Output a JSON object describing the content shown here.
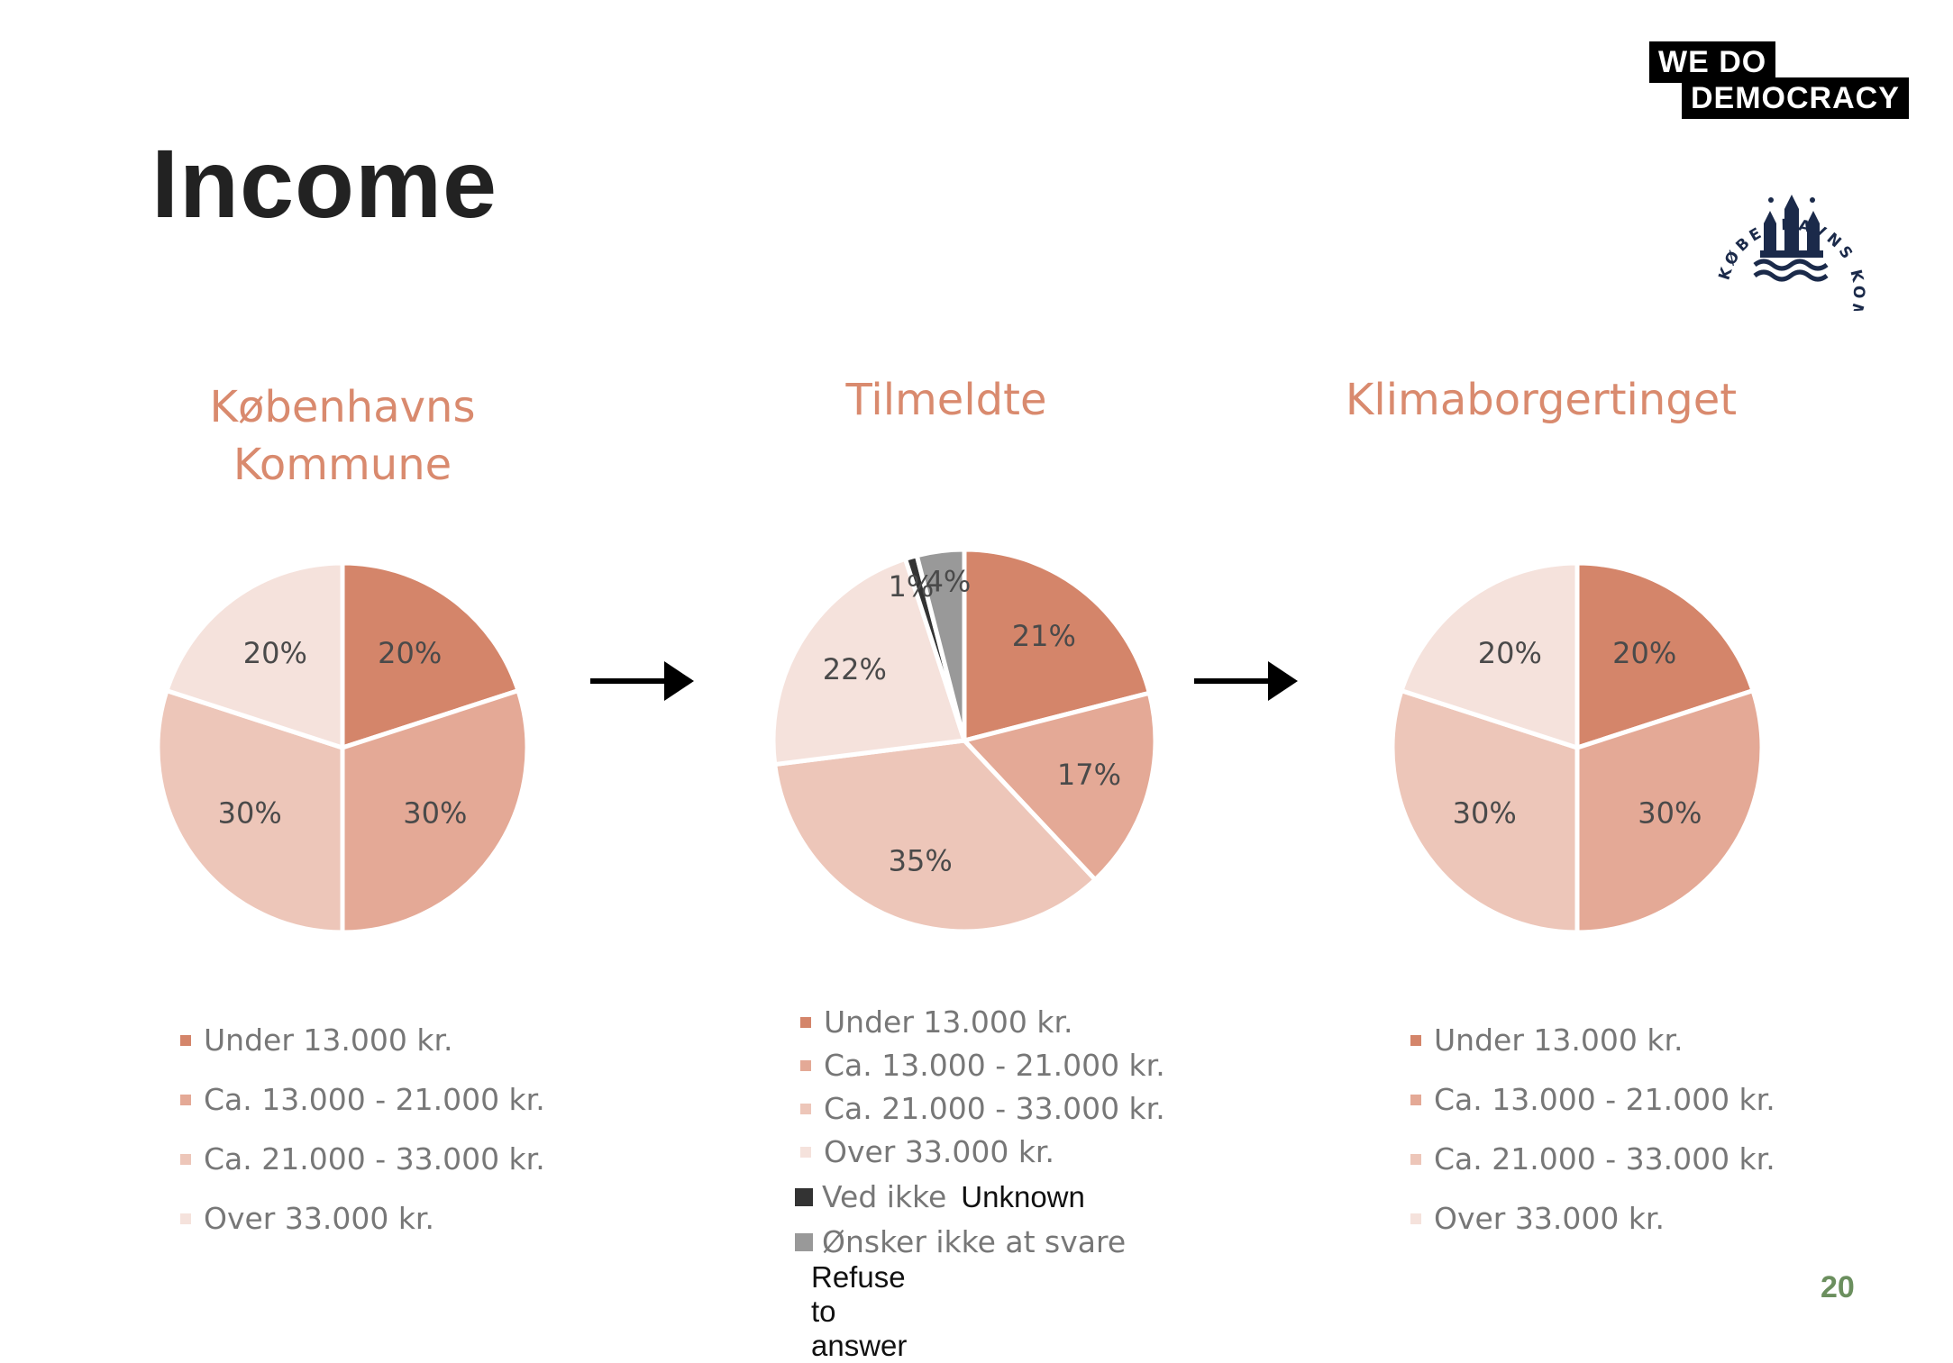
{
  "slide": {
    "title": "Income",
    "page_number": "20",
    "logo": {
      "line1": "WE  DO",
      "line2": "DEMOCRACY"
    },
    "seal_text": "KØBENHAVNS KOMMUNE"
  },
  "colors": {
    "c1": "#d4856a",
    "c2": "#e4a996",
    "c3": "#edc6b9",
    "c4": "#f5e2dc",
    "c5": "#333333",
    "c6": "#999999",
    "title_accent": "#d98a6e"
  },
  "chart_data": [
    {
      "type": "pie",
      "title": "Københavns Kommune",
      "categories": [
        "Under 13.000 kr.",
        "Ca. 13.000 - 21.000 kr.",
        "Ca. 21.000 - 33.000 kr.",
        "Over 33.000 kr."
      ],
      "values": [
        20,
        30,
        30,
        20
      ],
      "labels": [
        "20%",
        "30%",
        "30%",
        "20%"
      ],
      "colors": [
        "#d4856a",
        "#e4a996",
        "#edc6b9",
        "#f5e2dc"
      ],
      "legend_position": "bottom"
    },
    {
      "type": "pie",
      "title": "Tilmeldte",
      "categories": [
        "Under 13.000 kr.",
        "Ca. 13.000 - 21.000 kr.",
        "Ca. 21.000 - 33.000 kr.",
        "Over 33.000 kr.",
        "Ved ikke",
        "Ønsker ikke at svare"
      ],
      "values": [
        21,
        17,
        35,
        22,
        1,
        4
      ],
      "labels": [
        "21%",
        "17%",
        "35%",
        "22%",
        "1%",
        "4%"
      ],
      "colors": [
        "#d4856a",
        "#e4a996",
        "#edc6b9",
        "#f5e2dc",
        "#333333",
        "#999999"
      ],
      "annotations": {
        "Ved ikke": "Unknown",
        "Ønsker ikke at svare": "Refuse to answer"
      },
      "legend_position": "bottom"
    },
    {
      "type": "pie",
      "title": "Klimaborgertinget",
      "categories": [
        "Under 13.000 kr.",
        "Ca. 13.000 - 21.000 kr.",
        "Ca. 21.000 - 33.000 kr.",
        "Over 33.000 kr."
      ],
      "values": [
        20,
        30,
        30,
        20
      ],
      "labels": [
        "20%",
        "30%",
        "30%",
        "20%"
      ],
      "colors": [
        "#d4856a",
        "#e4a996",
        "#edc6b9",
        "#f5e2dc"
      ],
      "legend_position": "bottom"
    }
  ]
}
